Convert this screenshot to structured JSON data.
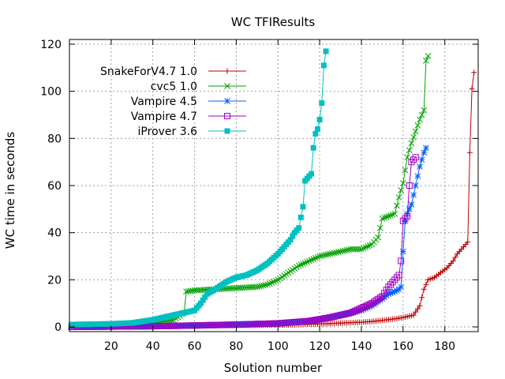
{
  "chart_data": {
    "type": "line",
    "title": "WC TFIResults",
    "xlabel": "Solution number",
    "ylabel": "WC time in seconds",
    "xlim": [
      0,
      196
    ],
    "ylim": [
      -2,
      122
    ],
    "xticks": [
      20,
      40,
      60,
      80,
      100,
      120,
      140,
      160,
      180
    ],
    "yticks": [
      0,
      20,
      40,
      60,
      80,
      100,
      120
    ],
    "grid": true,
    "legend_position": "top-left",
    "series": [
      {
        "name": "SnakeForV4.7 1.0",
        "color": "#c00000",
        "marker": "plus",
        "points": [
          [
            1,
            0.2
          ],
          [
            20,
            0.3
          ],
          [
            40,
            0.4
          ],
          [
            60,
            0.5
          ],
          [
            80,
            0.6
          ],
          [
            100,
            0.8
          ],
          [
            110,
            1
          ],
          [
            120,
            1.3
          ],
          [
            130,
            1.6
          ],
          [
            140,
            2
          ],
          [
            145,
            2.3
          ],
          [
            150,
            2.8
          ],
          [
            155,
            3.3
          ],
          [
            160,
            4
          ],
          [
            165,
            5
          ],
          [
            168,
            9
          ],
          [
            170,
            16
          ],
          [
            172,
            20
          ],
          [
            175,
            21
          ],
          [
            178,
            23
          ],
          [
            181,
            25
          ],
          [
            184,
            28
          ],
          [
            186,
            31
          ],
          [
            188,
            33
          ],
          [
            190,
            35
          ],
          [
            191,
            36
          ],
          [
            192,
            74
          ],
          [
            193,
            101
          ],
          [
            194,
            108
          ]
        ]
      },
      {
        "name": "cvc5 1.0",
        "color": "#00a000",
        "marker": "cross",
        "points": [
          [
            1,
            0.5
          ],
          [
            20,
            0.8
          ],
          [
            40,
            1.5
          ],
          [
            50,
            3
          ],
          [
            55,
            6
          ],
          [
            56,
            15
          ],
          [
            60,
            15.5
          ],
          [
            70,
            16
          ],
          [
            80,
            16.5
          ],
          [
            90,
            17
          ],
          [
            95,
            18
          ],
          [
            100,
            20
          ],
          [
            105,
            23
          ],
          [
            110,
            26
          ],
          [
            115,
            28
          ],
          [
            120,
            30
          ],
          [
            125,
            31
          ],
          [
            130,
            32
          ],
          [
            135,
            33
          ],
          [
            140,
            33
          ],
          [
            145,
            35
          ],
          [
            148,
            38
          ],
          [
            150,
            46
          ],
          [
            153,
            47
          ],
          [
            156,
            48
          ],
          [
            158,
            55
          ],
          [
            160,
            61
          ],
          [
            162,
            72
          ],
          [
            164,
            78
          ],
          [
            166,
            83
          ],
          [
            168,
            88
          ],
          [
            170,
            92
          ],
          [
            171,
            113
          ],
          [
            172,
            115
          ]
        ]
      },
      {
        "name": "Vampire 4.5",
        "color": "#0060ff",
        "marker": "star",
        "points": [
          [
            1,
            0
          ],
          [
            40,
            0.3
          ],
          [
            60,
            0.6
          ],
          [
            80,
            1
          ],
          [
            100,
            1.5
          ],
          [
            115,
            2.5
          ],
          [
            125,
            4
          ],
          [
            135,
            6
          ],
          [
            140,
            7
          ],
          [
            145,
            9
          ],
          [
            150,
            12
          ],
          [
            153,
            14
          ],
          [
            156,
            15
          ],
          [
            158,
            16
          ],
          [
            159,
            17
          ],
          [
            160,
            32
          ],
          [
            161,
            45
          ],
          [
            162,
            48
          ],
          [
            164,
            52
          ],
          [
            166,
            60
          ],
          [
            168,
            68
          ],
          [
            170,
            74
          ],
          [
            171,
            76
          ]
        ]
      },
      {
        "name": "Vampire 4.7",
        "color": "#a000c0",
        "marker": "square",
        "points": [
          [
            1,
            0
          ],
          [
            40,
            0.3
          ],
          [
            60,
            0.6
          ],
          [
            80,
            1
          ],
          [
            100,
            1.5
          ],
          [
            115,
            2.5
          ],
          [
            125,
            4
          ],
          [
            135,
            6
          ],
          [
            140,
            8
          ],
          [
            145,
            10
          ],
          [
            150,
            13
          ],
          [
            153,
            17
          ],
          [
            156,
            20
          ],
          [
            158,
            22
          ],
          [
            159,
            28
          ],
          [
            160,
            45
          ],
          [
            162,
            47
          ],
          [
            163,
            60
          ],
          [
            164,
            70
          ],
          [
            166,
            72
          ]
        ]
      },
      {
        "name": "iProver 3.6",
        "color": "#00c0c0",
        "marker": "filled-square",
        "points": [
          [
            1,
            1
          ],
          [
            20,
            1.3
          ],
          [
            30,
            1.7
          ],
          [
            40,
            3
          ],
          [
            50,
            5
          ],
          [
            55,
            6
          ],
          [
            60,
            7
          ],
          [
            63,
            10
          ],
          [
            66,
            14
          ],
          [
            70,
            16
          ],
          [
            75,
            19
          ],
          [
            80,
            21
          ],
          [
            85,
            22
          ],
          [
            90,
            24
          ],
          [
            95,
            27
          ],
          [
            100,
            31
          ],
          [
            103,
            34
          ],
          [
            106,
            37
          ],
          [
            108,
            40
          ],
          [
            110,
            42
          ],
          [
            112,
            51
          ],
          [
            113,
            62
          ],
          [
            114,
            63
          ],
          [
            116,
            65
          ],
          [
            117,
            76
          ],
          [
            118,
            82
          ],
          [
            119,
            84
          ],
          [
            120,
            88
          ],
          [
            121,
            95
          ],
          [
            122,
            111
          ],
          [
            123,
            117
          ]
        ]
      }
    ]
  }
}
